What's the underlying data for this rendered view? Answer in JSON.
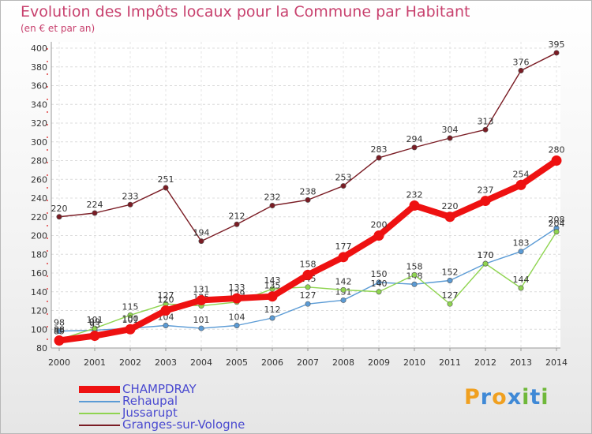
{
  "title": "Evolution des Impôts locaux pour la Commune par Habitant",
  "subtitle": "(en € et par an)",
  "logo": {
    "letters": [
      "P",
      "r",
      "o",
      "x",
      "i",
      "t",
      "i"
    ],
    "colors": [
      "#f0a020",
      "#3f89d6",
      "#f0a020",
      "#3f89d6",
      "#6fb83a",
      "#3f89d6",
      "#6fb83a"
    ]
  },
  "chart_data": {
    "type": "line",
    "title": "Evolution des Impôts locaux pour la Commune par Habitant",
    "subtitle": "(en € et par an)",
    "xlabel": "",
    "ylabel": "",
    "x": [
      "2000",
      "2001",
      "2002",
      "2003",
      "2004",
      "2005",
      "2006",
      "2007",
      "2008",
      "2009",
      "2010",
      "2011",
      "2012",
      "2013",
      "2014"
    ],
    "ylim": [
      80,
      400
    ],
    "yticks": [
      80,
      100,
      120,
      140,
      160,
      180,
      200,
      220,
      240,
      260,
      280,
      300,
      320,
      340,
      360,
      380,
      400
    ],
    "grid": true,
    "legend_position": "bottom-left",
    "series": [
      {
        "name": "Granges-sur-Vologne",
        "color": "#7a1c24",
        "values": [
          220,
          224,
          233,
          251,
          194,
          212,
          232,
          238,
          253,
          283,
          294,
          304,
          313,
          376,
          395
        ],
        "labels": [
          "220",
          "224",
          "233",
          "251",
          "194",
          "212",
          "232",
          "238",
          "253",
          "283",
          "294",
          "304",
          "313",
          "376",
          "395"
        ]
      },
      {
        "name": "Rehaupal",
        "color": "#5b9bd5",
        "values": [
          98,
          99,
          101,
          104,
          101,
          104,
          112,
          127,
          131,
          150,
          148,
          152,
          170,
          183,
          208
        ],
        "labels": [
          "98",
          "99",
          "101",
          "104",
          "101",
          "104",
          "112",
          "127",
          "131",
          "150",
          "148",
          "152",
          "170",
          "183",
          "208"
        ]
      },
      {
        "name": "Jussarupt",
        "color": "#8fd450",
        "values": [
          89,
          101,
          115,
          127,
          125,
          129,
          143,
          145,
          142,
          140,
          158,
          127,
          170,
          144,
          204
        ],
        "labels": [
          "89",
          "101",
          "115",
          "127",
          "125",
          "129",
          "143",
          "145",
          "142",
          "140",
          "158",
          "127",
          "170",
          "144",
          "204"
        ]
      },
      {
        "name": "CHAMPDRAY",
        "color": "#ee1111",
        "values": [
          88,
          93,
          100,
          120,
          131,
          133,
          135,
          158,
          177,
          200,
          232,
          220,
          237,
          254,
          280
        ],
        "labels": [
          "88",
          "93",
          "100",
          "120",
          "131",
          "133",
          "135",
          "158",
          "177",
          "200",
          "232",
          "220",
          "237",
          "254",
          "280"
        ]
      }
    ],
    "legend": [
      "CHAMPDRAY",
      "Rehaupal",
      "Jussarupt",
      "Granges-sur-Vologne"
    ]
  }
}
